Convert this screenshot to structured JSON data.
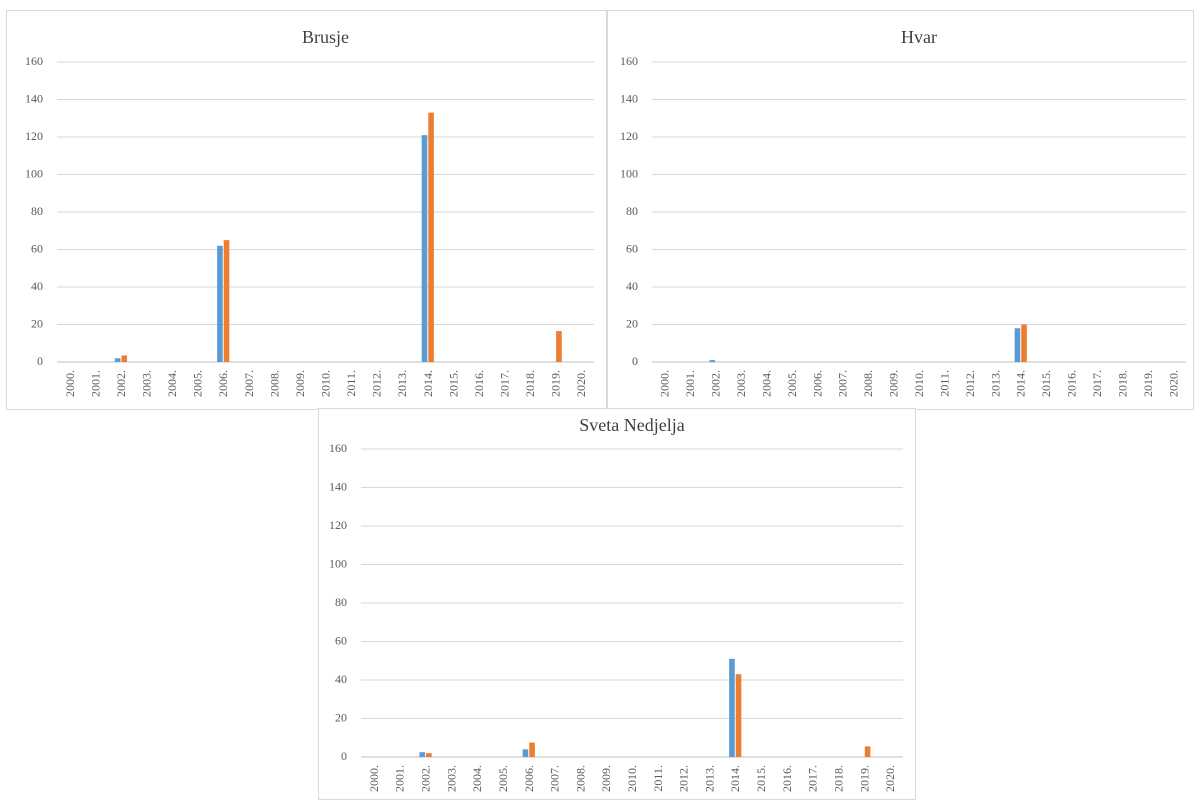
{
  "chart_data": [
    {
      "type": "bar",
      "title": "Brusje",
      "categories": [
        "2000.",
        "2001.",
        "2002.",
        "2003.",
        "2004.",
        "2005.",
        "2006.",
        "2007.",
        "2008.",
        "2009.",
        "2010.",
        "2011.",
        "2012.",
        "2013.",
        "2014.",
        "2015.",
        "2016.",
        "2017.",
        "2018.",
        "2019.",
        "2020."
      ],
      "series": [
        {
          "color": "#5b9bd5",
          "values": [
            0,
            0,
            2,
            0,
            0,
            0,
            62,
            0,
            0,
            0,
            0,
            0,
            0,
            0,
            121,
            0,
            0,
            0,
            0,
            0,
            0
          ]
        },
        {
          "color": "#ed7d31",
          "values": [
            0,
            0,
            3.5,
            0,
            0,
            0,
            65,
            0,
            0,
            0,
            0,
            0,
            0,
            0,
            133,
            0,
            0,
            0,
            0,
            16.5,
            0
          ]
        }
      ],
      "ylim": [
        0,
        160
      ],
      "yticks": [
        "0",
        "20",
        "40",
        "60",
        "80",
        "100",
        "120",
        "140",
        "160"
      ],
      "grid": true,
      "legend": "none"
    },
    {
      "type": "bar",
      "title": "Hvar",
      "categories": [
        "2000.",
        "2001.",
        "2002.",
        "2003.",
        "2004.",
        "2005.",
        "2006.",
        "2007.",
        "2008.",
        "2009.",
        "2010.",
        "2011.",
        "2012.",
        "2013.",
        "2014.",
        "2015.",
        "2016.",
        "2017.",
        "2018.",
        "2019.",
        "2020."
      ],
      "series": [
        {
          "color": "#5b9bd5",
          "values": [
            0,
            0,
            1,
            0,
            0,
            0,
            0,
            0,
            0,
            0,
            0,
            0,
            0,
            0,
            18,
            0,
            0,
            0,
            0,
            0,
            0
          ]
        },
        {
          "color": "#ed7d31",
          "values": [
            0,
            0,
            0,
            0,
            0,
            0,
            0,
            0,
            0,
            0,
            0,
            0,
            0,
            0,
            20,
            0,
            0,
            0,
            0,
            0,
            0
          ]
        }
      ],
      "ylim": [
        0,
        160
      ],
      "yticks": [
        "0",
        "20",
        "40",
        "60",
        "80",
        "100",
        "120",
        "140",
        "160"
      ],
      "grid": true,
      "legend": "none"
    },
    {
      "type": "bar",
      "title": "Sveta Nedjelja",
      "categories": [
        "2000.",
        "2001.",
        "2002.",
        "2003.",
        "2004.",
        "2005.",
        "2006.",
        "2007.",
        "2008.",
        "2009.",
        "2010.",
        "2011.",
        "2012.",
        "2013.",
        "2014.",
        "2015.",
        "2016.",
        "2017.",
        "2018.",
        "2019.",
        "2020."
      ],
      "series": [
        {
          "color": "#5b9bd5",
          "values": [
            0,
            0,
            2.5,
            0,
            0,
            0,
            4,
            0,
            0,
            0,
            0,
            0,
            0,
            0,
            51,
            0,
            0,
            0,
            0,
            0,
            0
          ]
        },
        {
          "color": "#ed7d31",
          "values": [
            0,
            0,
            2,
            0,
            0,
            0,
            7.5,
            0,
            0,
            0,
            0,
            0,
            0,
            0,
            43,
            0,
            0,
            0,
            0,
            5.5,
            0
          ]
        }
      ],
      "ylim": [
        0,
        160
      ],
      "yticks": [
        "0",
        "20",
        "40",
        "60",
        "80",
        "100",
        "120",
        "140",
        "160"
      ],
      "grid": true,
      "legend": "none"
    }
  ]
}
